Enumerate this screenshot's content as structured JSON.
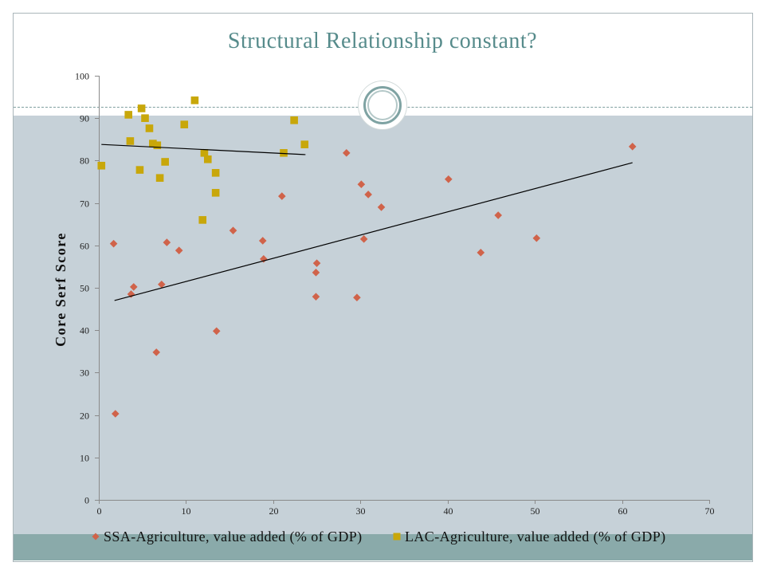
{
  "chart_data": {
    "type": "scatter",
    "title": "Structural Relationship constant?",
    "ylabel": "Core Serf Score",
    "xlim": [
      0,
      70
    ],
    "ylim": [
      0,
      100
    ],
    "xticks": [
      0,
      10,
      20,
      30,
      40,
      50,
      60,
      70
    ],
    "yticks": [
      0,
      10,
      20,
      30,
      40,
      50,
      60,
      70,
      80,
      90,
      100
    ],
    "grid": false,
    "legend": "bottom",
    "series": [
      {
        "name": "SSA-Agriculture, value added (% of GDP)",
        "marker": "diamond",
        "color": "#d0634a",
        "x": [
          1.7,
          1.9,
          3.7,
          4.0,
          6.6,
          7.2,
          7.8,
          9.2,
          13.5,
          15.4,
          18.8,
          18.9,
          21.0,
          24.9,
          24.9,
          25.0,
          28.4,
          29.6,
          30.1,
          30.4,
          30.9,
          32.4,
          40.1,
          43.8,
          45.8,
          50.2,
          61.2
        ],
        "y": [
          60.4,
          20.3,
          48.5,
          50.2,
          34.8,
          50.8,
          60.7,
          58.8,
          39.8,
          63.5,
          61.1,
          56.8,
          71.6,
          47.9,
          53.6,
          55.8,
          81.8,
          47.7,
          74.4,
          61.5,
          72.0,
          69.0,
          75.6,
          58.3,
          67.1,
          61.7,
          83.3
        ],
        "trendline": {
          "x": [
            1.8,
            61.2
          ],
          "y": [
            47.0,
            79.5
          ]
        }
      },
      {
        "name": "LAC-Agriculture, value added (% of GDP)",
        "marker": "square",
        "color": "#c8a70a",
        "x": [
          0.3,
          3.4,
          3.6,
          4.7,
          4.9,
          5.3,
          5.8,
          6.2,
          6.7,
          7.0,
          7.6,
          9.8,
          11.0,
          11.9,
          12.1,
          12.5,
          13.4,
          13.4,
          21.2,
          22.4,
          23.6
        ],
        "y": [
          78.8,
          90.8,
          84.6,
          77.8,
          92.3,
          90.0,
          87.6,
          84.0,
          83.6,
          75.9,
          79.7,
          88.5,
          94.2,
          66.0,
          81.8,
          80.3,
          77.1,
          72.4,
          81.8,
          89.5,
          83.8
        ],
        "trendline": {
          "x": [
            0.3,
            23.7
          ],
          "y": [
            83.8,
            81.4
          ]
        }
      }
    ]
  }
}
